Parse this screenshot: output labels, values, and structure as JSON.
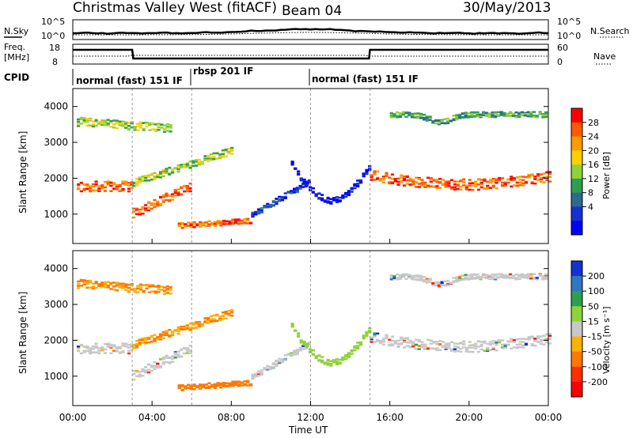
{
  "header": {
    "station": "Christmas Valley West (fitACF)",
    "beam": "Beam 04",
    "date": "30/May/2013"
  },
  "panels": {
    "nsky": {
      "label": "N.Sky",
      "right_label": "N.Search",
      "left_ticks": [
        "10^5",
        "10^0"
      ],
      "right_ticks": [
        "10^5",
        "10^0"
      ]
    },
    "freq": {
      "label_line1": "Freq.",
      "label_line2": "[MHz]",
      "left_ticks": [
        "18",
        "8"
      ],
      "right_ticks": [
        "60",
        "0"
      ],
      "right_label": "Nave"
    },
    "cpid": {
      "label": "CPID",
      "segments": [
        "normal (fast) 151 IF",
        "rbsp 201 IF",
        "normal (fast) 151 IF"
      ]
    }
  },
  "power_colorbar": {
    "label": "Power [dB]",
    "ticks": [
      "28",
      "24",
      "20",
      "16",
      "12",
      "8",
      "4"
    ],
    "colors": [
      "#ff0000",
      "#ff5a00",
      "#ff9a00",
      "#ffd000",
      "#8fd23a",
      "#2f9e52",
      "#2d6b8e",
      "#1432d2",
      "#0000ff"
    ]
  },
  "velocity_colorbar": {
    "label": "Velocity [m s⁻¹]",
    "ticks": [
      "200",
      "100",
      "50",
      "15",
      "-15",
      "-50",
      "-100",
      "-200"
    ],
    "colors": [
      "#1432d2",
      "#2f78c0",
      "#2f9e52",
      "#8fd23a",
      "#c8c8c8",
      "#ffb000",
      "#ff7800",
      "#ff3000",
      "#ff0000"
    ]
  },
  "chart_data": {
    "type": "heatmap",
    "xlabel": "Time UT",
    "x_ticks": [
      "00:00",
      "04:00",
      "08:00",
      "12:00",
      "16:00",
      "20:00",
      "00:00"
    ],
    "xlim": [
      0,
      24
    ],
    "ylabel": "Slant Range [km]",
    "y_ticks": [
      4000,
      3000,
      2000,
      1000
    ],
    "ylim": [
      180,
      4500
    ],
    "cpid_boundaries_hours": [
      3.0,
      6.0,
      12.0,
      15.0
    ]
  }
}
